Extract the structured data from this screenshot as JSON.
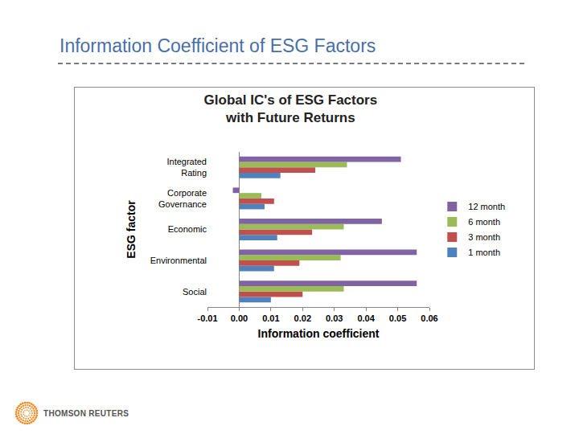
{
  "slide": {
    "title": "Information Coefficient of ESG Factors",
    "logo": "THOMSON REUTERS"
  },
  "chart_data": {
    "type": "bar",
    "orientation": "horizontal",
    "title": "Global IC's of ESG Factors with Future Returns",
    "x_label": "Information coefficient",
    "y_label": "ESG factor",
    "categories": [
      "Integrated Rating",
      "Corporate Governance",
      "Economic",
      "Environmental",
      "Social"
    ],
    "series": [
      {
        "name": "12 month",
        "color": "#8064a2",
        "values": [
          0.051,
          -0.002,
          0.045,
          0.056,
          0.056
        ]
      },
      {
        "name": "6 month",
        "color": "#9bbb59",
        "values": [
          0.034,
          0.007,
          0.033,
          0.032,
          0.033
        ]
      },
      {
        "name": "3 month",
        "color": "#c0504d",
        "values": [
          0.024,
          0.011,
          0.023,
          0.019,
          0.02
        ]
      },
      {
        "name": "1 month",
        "color": "#4f81bd",
        "values": [
          0.013,
          0.008,
          0.012,
          0.011,
          0.01
        ]
      }
    ],
    "xlim": [
      -0.01,
      0.06
    ],
    "xticks": [
      -0.01,
      {
        "value": 0,
        "label": "0.00"
      },
      0.01,
      0.02,
      0.03,
      0.04,
      0.05,
      0.06
    ],
    "grid": false,
    "legend": "right"
  }
}
